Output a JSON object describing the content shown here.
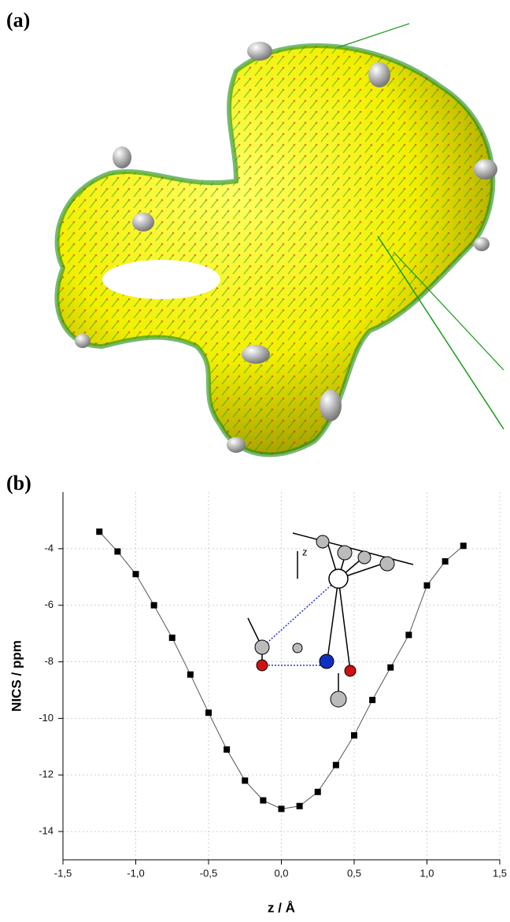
{
  "panel_a": {
    "label": "(a)"
  },
  "panel_b": {
    "label": "(b)"
  },
  "chart_data": {
    "type": "line",
    "x_label": "z / Å",
    "y_label": "NICS / ppm",
    "x": [
      -1.25,
      -1.125,
      -1.0,
      -0.875,
      -0.75,
      -0.625,
      -0.5,
      -0.375,
      -0.25,
      -0.125,
      0,
      0.125,
      0.25,
      0.375,
      0.5,
      0.625,
      0.75,
      0.875,
      1.0,
      1.125,
      1.25
    ],
    "series": [
      {
        "color": "#000000",
        "values": [
          -3.4,
          -4.1,
          -4.9,
          -6.0,
          -7.15,
          -8.45,
          -9.8,
          -11.1,
          -12.2,
          -12.9,
          -13.2,
          -13.1,
          -12.6,
          -11.65,
          -10.6,
          -9.35,
          -8.2,
          -7.05,
          -5.3,
          -4.45,
          -3.9
        ]
      }
    ],
    "xlim": [
      -1.5,
      1.5
    ],
    "ylim": [
      -15,
      -2
    ],
    "xticks": [
      {
        "value": -1.5,
        "label": "-1,5"
      },
      {
        "value": -1.0,
        "label": "-1,0"
      },
      {
        "value": -0.5,
        "label": "-0,5"
      },
      {
        "value": 0,
        "label": "0,0"
      },
      {
        "value": 0.5,
        "label": "0,5"
      },
      {
        "value": 1.0,
        "label": "1,0"
      },
      {
        "value": 1.5,
        "label": "1,5"
      }
    ],
    "yticks": [
      -4,
      -6,
      -8,
      -10,
      -12,
      -14
    ],
    "grid": true
  }
}
